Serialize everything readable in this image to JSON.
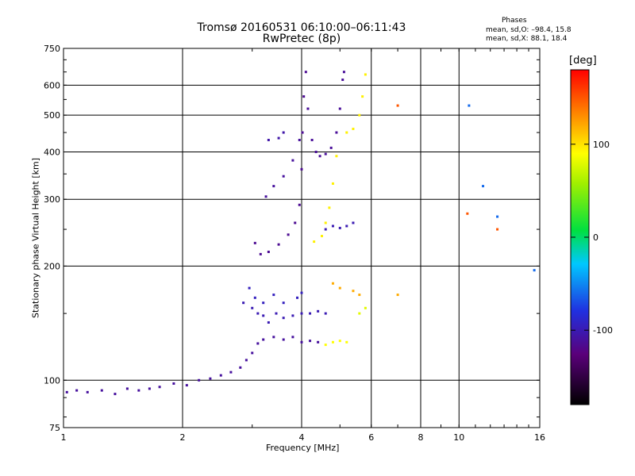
{
  "header": {
    "title_line1": "Tromsø 20160531 06:10:00–06:11:43",
    "title_line2": "RwPretec (8p)",
    "phases_heading": "Phases",
    "phase_o": "mean, sd,O: –98.4, 15.8",
    "phase_x": "mean, sd,X:  88.1, 18.4"
  },
  "chart_data": {
    "type": "scatter",
    "xlabel": "Frequency [MHz]",
    "ylabel": "Stationary phase Virtual Height [km]",
    "x_scale": "log",
    "y_scale": "log",
    "xlim": [
      1,
      16
    ],
    "ylim": [
      75,
      750
    ],
    "x_ticks": [
      1,
      2,
      4,
      6,
      8,
      10,
      16
    ],
    "y_ticks": [
      75,
      100,
      200,
      300,
      400,
      500,
      600,
      750
    ],
    "grid": true,
    "colorbar": {
      "title": "[deg]",
      "range": [
        -180,
        180
      ],
      "ticks": [
        100,
        0,
        -100
      ]
    },
    "series": [
      {
        "phase_deg": -110,
        "points": [
          [
            1.02,
            93
          ],
          [
            1.08,
            94
          ],
          [
            1.15,
            93
          ],
          [
            1.25,
            94
          ],
          [
            1.35,
            92
          ],
          [
            1.45,
            95
          ],
          [
            1.55,
            94
          ],
          [
            1.65,
            95
          ],
          [
            1.75,
            96
          ],
          [
            1.9,
            98
          ],
          [
            2.05,
            97
          ],
          [
            2.2,
            100
          ],
          [
            2.35,
            101
          ],
          [
            2.5,
            103
          ],
          [
            2.65,
            105
          ],
          [
            2.8,
            108
          ],
          [
            2.9,
            113
          ],
          [
            3.0,
            118
          ],
          [
            3.1,
            125
          ],
          [
            3.2,
            128
          ],
          [
            3.4,
            130
          ],
          [
            3.6,
            128
          ],
          [
            3.8,
            130
          ],
          [
            4.0,
            126
          ],
          [
            4.2,
            127
          ],
          [
            4.4,
            126
          ]
        ]
      },
      {
        "phase_deg": -100,
        "points": [
          [
            2.85,
            160
          ],
          [
            3.0,
            155
          ],
          [
            3.1,
            150
          ],
          [
            3.2,
            148
          ],
          [
            3.3,
            142
          ],
          [
            3.45,
            150
          ],
          [
            3.6,
            146
          ],
          [
            3.8,
            148
          ],
          [
            4.0,
            150
          ],
          [
            4.2,
            150
          ],
          [
            4.4,
            152
          ],
          [
            4.6,
            150
          ]
        ]
      },
      {
        "phase_deg": -95,
        "points": [
          [
            2.95,
            175
          ],
          [
            3.05,
            165
          ],
          [
            3.2,
            160
          ],
          [
            3.4,
            168
          ],
          [
            3.6,
            160
          ],
          [
            3.9,
            165
          ],
          [
            4.0,
            170
          ]
        ]
      },
      {
        "phase_deg": -115,
        "points": [
          [
            3.05,
            230
          ],
          [
            3.15,
            215
          ],
          [
            3.3,
            218
          ],
          [
            3.5,
            228
          ],
          [
            3.7,
            242
          ],
          [
            3.85,
            260
          ],
          [
            3.95,
            290
          ],
          [
            4.0,
            360
          ],
          [
            4.02,
            450
          ],
          [
            4.05,
            560
          ],
          [
            4.1,
            650
          ]
        ]
      },
      {
        "phase_deg": -110,
        "points": [
          [
            3.25,
            305
          ],
          [
            3.4,
            325
          ],
          [
            3.6,
            345
          ],
          [
            3.8,
            380
          ],
          [
            3.95,
            430
          ]
        ]
      },
      {
        "phase_deg": -105,
        "points": [
          [
            3.3,
            430
          ],
          [
            3.5,
            435
          ],
          [
            3.6,
            450
          ]
        ]
      },
      {
        "phase_deg": -112,
        "points": [
          [
            4.15,
            520
          ],
          [
            4.25,
            430
          ],
          [
            4.35,
            400
          ],
          [
            4.45,
            390
          ],
          [
            4.6,
            395
          ],
          [
            4.75,
            410
          ],
          [
            4.9,
            450
          ],
          [
            5.0,
            520
          ],
          [
            5.08,
            620
          ],
          [
            5.12,
            650
          ]
        ]
      },
      {
        "phase_deg": -100,
        "points": [
          [
            4.6,
            250
          ],
          [
            4.8,
            255
          ],
          [
            5.0,
            252
          ],
          [
            5.2,
            255
          ],
          [
            5.4,
            260
          ]
        ]
      },
      {
        "phase_deg": 95,
        "points": [
          [
            4.3,
            232
          ],
          [
            4.5,
            240
          ],
          [
            4.6,
            260
          ],
          [
            4.7,
            285
          ],
          [
            4.8,
            330
          ],
          [
            4.9,
            390
          ],
          [
            5.2,
            450
          ],
          [
            5.4,
            460
          ],
          [
            5.6,
            500
          ],
          [
            5.7,
            560
          ],
          [
            5.8,
            640
          ]
        ]
      },
      {
        "phase_deg": 90,
        "points": [
          [
            4.6,
            124
          ],
          [
            4.8,
            126
          ],
          [
            5.0,
            127
          ],
          [
            5.2,
            126
          ]
        ]
      },
      {
        "phase_deg": 120,
        "points": [
          [
            4.8,
            180
          ],
          [
            5.0,
            175
          ],
          [
            5.4,
            172
          ],
          [
            5.6,
            168
          ],
          [
            7.0,
            168
          ]
        ]
      },
      {
        "phase_deg": 80,
        "points": [
          [
            5.6,
            150
          ],
          [
            5.8,
            155
          ]
        ]
      },
      {
        "phase_deg": -60,
        "points": [
          [
            10.6,
            530
          ],
          [
            11.5,
            325
          ],
          [
            12.5,
            270
          ],
          [
            15.5,
            195
          ]
        ]
      },
      {
        "phase_deg": 150,
        "points": [
          [
            7.0,
            530
          ],
          [
            10.5,
            275
          ],
          [
            12.5,
            250
          ]
        ]
      }
    ]
  }
}
